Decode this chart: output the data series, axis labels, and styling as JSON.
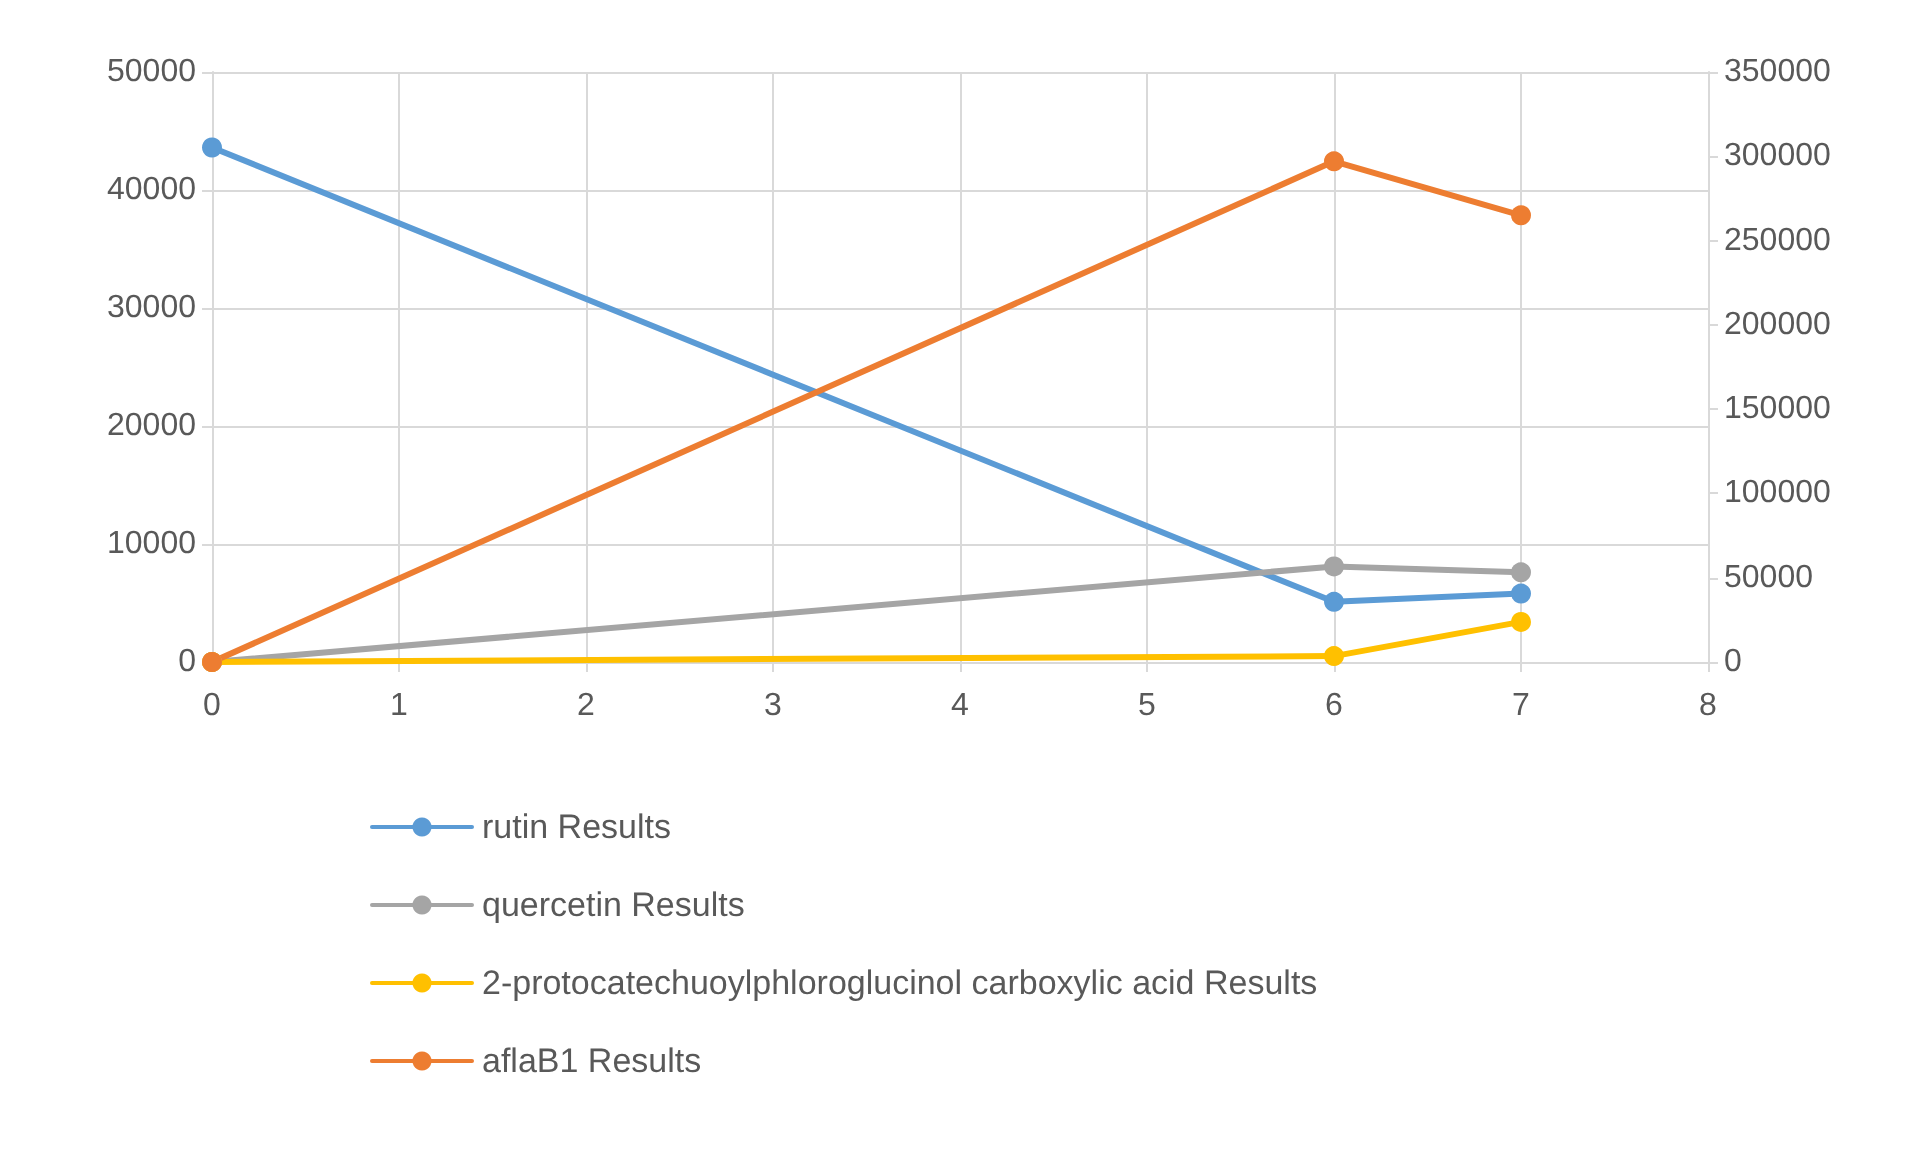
{
  "chart_data": {
    "type": "line",
    "x": [
      0,
      6,
      7
    ],
    "xlim": [
      0,
      8
    ],
    "xticks": [
      0,
      1,
      2,
      3,
      4,
      5,
      6,
      7,
      8
    ],
    "ylim": [
      0,
      50000
    ],
    "yticks": [
      0,
      10000,
      20000,
      30000,
      40000,
      50000
    ],
    "y2lim": [
      0,
      350000
    ],
    "y2ticks": [
      0,
      50000,
      100000,
      150000,
      200000,
      250000,
      300000,
      350000
    ],
    "grid": true,
    "legend": "bottom",
    "marker": "circle",
    "line_style": "solid",
    "series": [
      {
        "name": "rutin Results",
        "color": "#5b9bd5",
        "values": [
          43600,
          5100,
          5800
        ]
      },
      {
        "name": "quercetin Results",
        "color": "#a5a5a5",
        "values": [
          0,
          8100,
          7600
        ]
      },
      {
        "name": "2-protocatechuoylphloroglucinol carboxylic acid Results",
        "color": "#ffc000",
        "values": [
          0,
          500,
          3400
        ]
      },
      {
        "name": "aflaB1 Results",
        "color": "#ed7d31",
        "axis": "y2",
        "values": [
          0,
          297000,
          265000
        ]
      }
    ]
  }
}
